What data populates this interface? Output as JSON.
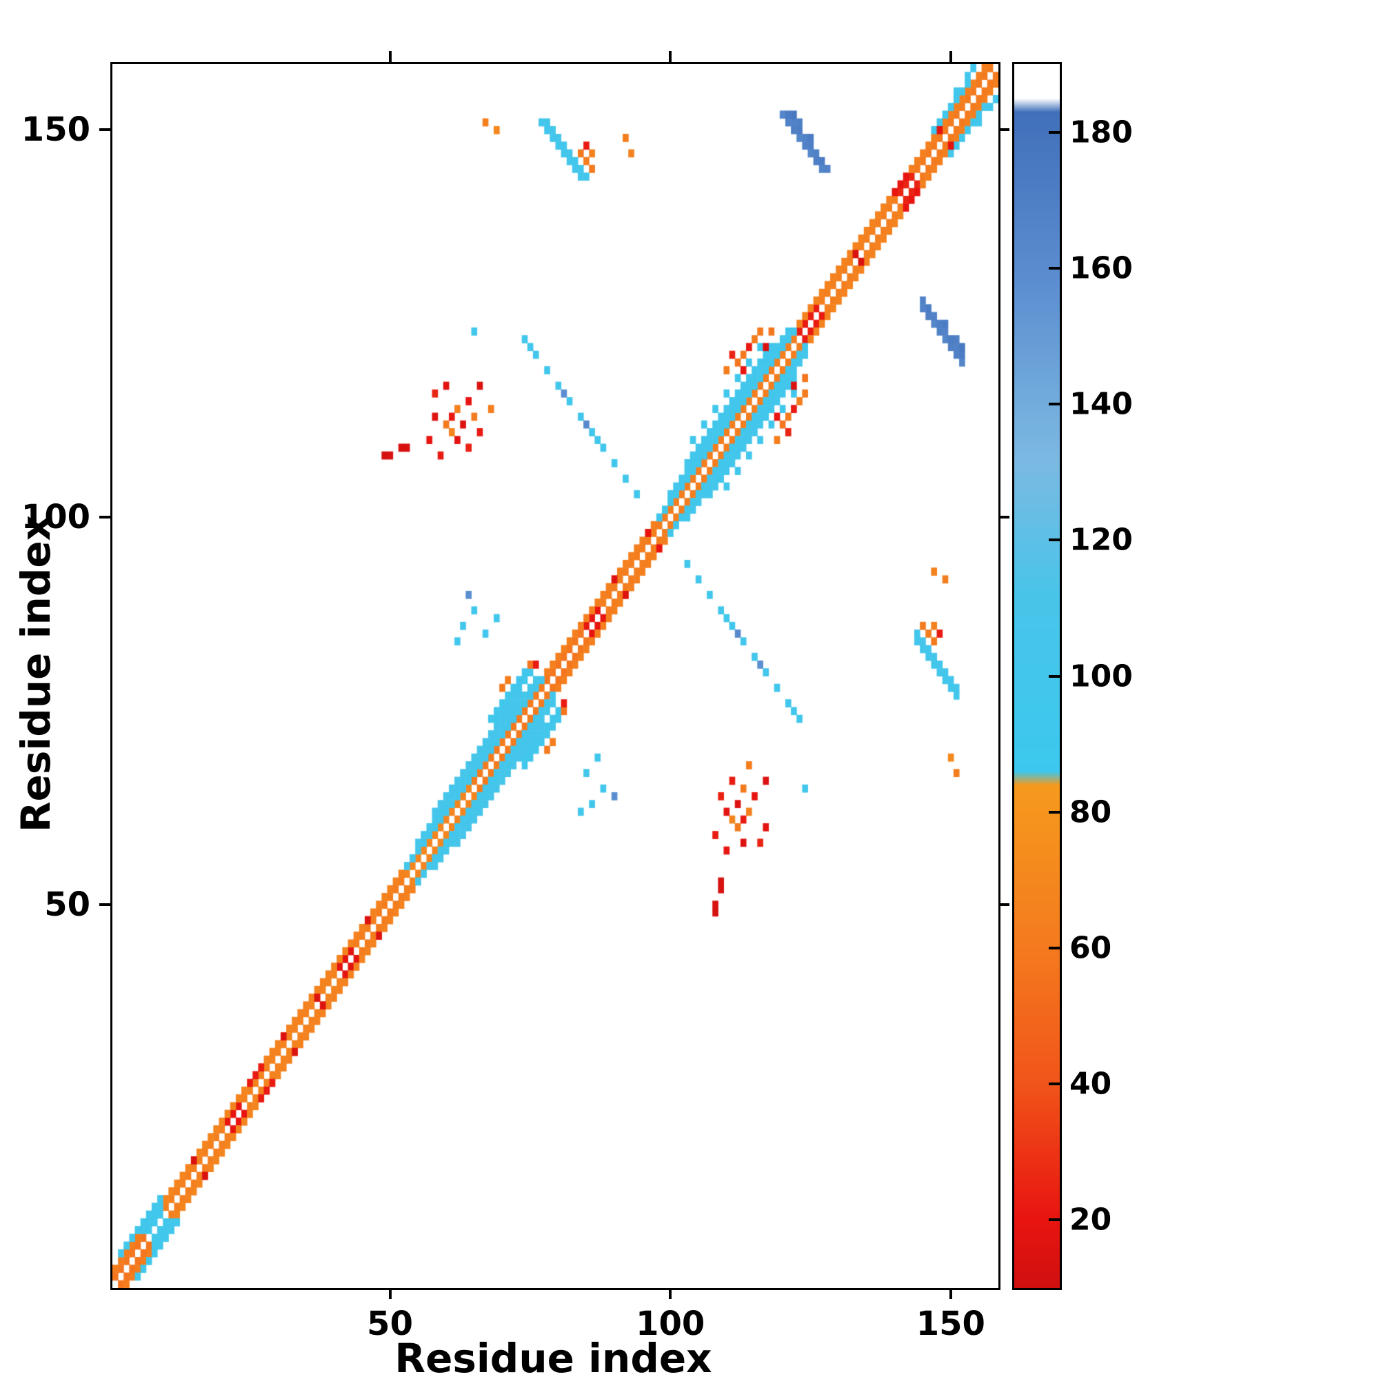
{
  "chart_data": {
    "type": "heatmap",
    "title": "",
    "xlabel": "Residue index",
    "ylabel": "Residue index",
    "x_range": [
      1,
      158
    ],
    "y_range": [
      1,
      158
    ],
    "x_ticks": [
      50,
      100,
      150
    ],
    "y_ticks": [
      50,
      100,
      150
    ],
    "grid": false,
    "background": "#ffffff",
    "frame_color": "#000000",
    "symmetric": true,
    "colorbar": {
      "position": "right",
      "range": [
        10,
        190
      ],
      "ticks": [
        20,
        40,
        60,
        80,
        100,
        120,
        140,
        160,
        180
      ],
      "stops": [
        [
          10,
          "#cf1010"
        ],
        [
          20,
          "#e81410"
        ],
        [
          40,
          "#f1541a"
        ],
        [
          60,
          "#f47a1e"
        ],
        [
          84,
          "#f59a1d"
        ],
        [
          86,
          "#3cc8ee"
        ],
        [
          112,
          "#49c4e9"
        ],
        [
          132,
          "#7cb9e2"
        ],
        [
          158,
          "#5b8ed0"
        ],
        [
          183,
          "#4170ba"
        ],
        [
          185,
          "#ffffff"
        ],
        [
          190,
          "#ffffff"
        ]
      ]
    },
    "band_segments": [
      [
        1,
        6,
        1,
        58
      ],
      [
        7,
        9,
        1,
        95
      ],
      [
        10,
        20,
        1,
        64
      ],
      [
        21,
        23,
        1,
        20
      ],
      [
        24,
        40,
        1,
        66
      ],
      [
        41,
        43,
        1,
        18
      ],
      [
        44,
        52,
        1,
        62
      ],
      [
        53,
        64,
        1,
        68
      ],
      [
        65,
        77,
        1,
        60
      ],
      [
        78,
        84,
        1,
        58
      ],
      [
        85,
        87,
        1,
        20
      ],
      [
        88,
        99,
        1,
        62
      ],
      [
        100,
        122,
        1,
        62
      ],
      [
        123,
        126,
        1,
        22
      ],
      [
        127,
        140,
        1,
        64
      ],
      [
        141,
        143,
        1,
        25
      ],
      [
        144,
        157,
        1,
        60
      ],
      [
        1,
        5,
        2,
        62
      ],
      [
        6,
        9,
        2,
        96
      ],
      [
        10,
        24,
        2,
        68
      ],
      [
        25,
        27,
        2,
        22
      ],
      [
        28,
        52,
        2,
        66
      ],
      [
        53,
        77,
        2,
        98
      ],
      [
        78,
        97,
        2,
        64
      ],
      [
        98,
        122,
        2,
        96
      ],
      [
        123,
        139,
        2,
        66
      ],
      [
        140,
        142,
        2,
        20
      ],
      [
        143,
        156,
        2,
        64
      ],
      [
        2,
        8,
        3,
        95
      ],
      [
        55,
        76,
        3,
        102
      ],
      [
        100,
        121,
        3,
        100
      ],
      [
        147,
        153,
        3,
        96
      ],
      [
        58,
        73,
        4,
        105
      ],
      [
        103,
        118,
        4,
        98
      ],
      [
        104,
        117,
        6,
        95,
        2
      ]
    ],
    "points": [
      [
        77,
        151,
        100
      ],
      [
        78,
        150,
        98
      ],
      [
        79,
        149,
        100
      ],
      [
        80,
        148,
        97
      ],
      [
        81,
        147,
        100
      ],
      [
        82,
        146,
        98
      ],
      [
        83,
        145,
        100
      ],
      [
        84,
        144,
        98
      ],
      [
        78,
        151,
        102
      ],
      [
        79,
        150,
        99
      ],
      [
        80,
        149,
        101
      ],
      [
        81,
        148,
        98
      ],
      [
        82,
        147,
        101
      ],
      [
        83,
        146,
        99
      ],
      [
        84,
        145,
        101
      ],
      [
        85,
        144,
        99
      ],
      [
        84,
        147,
        60
      ],
      [
        85,
        146,
        62
      ],
      [
        85,
        148,
        22
      ],
      [
        86,
        147,
        65
      ],
      [
        86,
        145,
        60
      ],
      [
        67,
        151,
        62
      ],
      [
        69,
        150,
        70
      ],
      [
        120,
        152,
        165
      ],
      [
        121,
        151,
        168
      ],
      [
        122,
        150,
        170
      ],
      [
        123,
        149,
        165
      ],
      [
        124,
        148,
        168
      ],
      [
        125,
        147,
        165
      ],
      [
        126,
        146,
        170
      ],
      [
        127,
        145,
        166
      ],
      [
        121,
        152,
        172
      ],
      [
        122,
        151,
        168
      ],
      [
        123,
        150,
        172
      ],
      [
        124,
        149,
        167
      ],
      [
        125,
        148,
        170
      ],
      [
        126,
        147,
        168
      ],
      [
        127,
        146,
        172
      ],
      [
        128,
        145,
        168
      ],
      [
        122,
        152,
        175
      ],
      [
        123,
        151,
        170
      ],
      [
        125,
        149,
        172
      ],
      [
        74,
        123,
        95
      ],
      [
        75,
        122,
        96
      ],
      [
        76,
        121,
        97
      ],
      [
        78,
        119,
        95
      ],
      [
        80,
        117,
        98
      ],
      [
        81,
        116,
        158
      ],
      [
        82,
        115,
        95
      ],
      [
        84,
        113,
        97
      ],
      [
        85,
        112,
        162
      ],
      [
        86,
        111,
        95
      ],
      [
        87,
        110,
        96
      ],
      [
        88,
        109,
        98
      ],
      [
        90,
        107,
        95
      ],
      [
        92,
        105,
        97
      ],
      [
        94,
        103,
        95
      ],
      [
        62,
        84,
        95
      ],
      [
        63,
        86,
        98
      ],
      [
        65,
        88,
        96
      ],
      [
        64,
        90,
        158
      ],
      [
        67,
        85,
        97
      ],
      [
        69,
        87,
        95
      ],
      [
        49,
        108,
        12
      ],
      [
        50,
        108,
        14
      ],
      [
        52,
        109,
        14
      ],
      [
        53,
        109,
        13
      ],
      [
        57,
        110,
        20
      ],
      [
        58,
        113,
        16
      ],
      [
        59,
        108,
        22
      ],
      [
        60,
        112,
        60
      ],
      [
        61,
        111,
        68
      ],
      [
        61,
        113,
        22
      ],
      [
        62,
        110,
        18
      ],
      [
        62,
        114,
        65
      ],
      [
        63,
        112,
        15
      ],
      [
        64,
        109,
        24
      ],
      [
        64,
        115,
        20
      ],
      [
        65,
        113,
        60
      ],
      [
        66,
        111,
        22
      ],
      [
        68,
        114,
        62
      ],
      [
        58,
        116,
        25
      ],
      [
        60,
        117,
        18
      ],
      [
        66,
        117,
        15
      ],
      [
        65,
        124,
        95
      ],
      [
        92,
        149,
        62
      ],
      [
        93,
        147,
        65
      ],
      [
        68,
        74,
        95
      ],
      [
        69,
        74,
        95
      ],
      [
        69,
        75,
        96
      ],
      [
        70,
        75,
        97
      ],
      [
        70,
        76,
        95
      ],
      [
        71,
        76,
        98
      ],
      [
        71,
        77,
        95
      ],
      [
        72,
        77,
        97
      ],
      [
        72,
        78,
        100
      ],
      [
        73,
        78,
        95
      ],
      [
        73,
        79,
        97
      ],
      [
        74,
        79,
        95
      ],
      [
        74,
        80,
        96
      ],
      [
        75,
        80,
        95
      ],
      [
        70,
        78,
        60
      ],
      [
        71,
        79,
        62
      ],
      [
        75,
        81,
        58
      ],
      [
        76,
        81,
        22
      ],
      [
        110,
        119,
        62
      ],
      [
        111,
        121,
        25
      ],
      [
        112,
        120,
        58
      ],
      [
        113,
        121,
        60
      ],
      [
        114,
        122,
        22
      ],
      [
        115,
        123,
        62
      ],
      [
        116,
        124,
        60
      ],
      [
        117,
        122,
        15
      ],
      [
        118,
        124,
        58
      ],
      [
        113,
        119,
        20
      ],
      [
        15,
        17,
        14
      ],
      [
        31,
        33,
        15
      ],
      [
        37,
        38,
        16
      ],
      [
        46,
        48,
        15
      ],
      [
        90,
        92,
        16
      ],
      [
        133,
        134,
        14
      ],
      [
        148,
        150,
        18
      ],
      [
        96,
        98,
        20
      ],
      [
        151,
        155,
        95
      ],
      [
        153,
        157,
        97
      ],
      [
        154,
        158,
        100
      ],
      [
        9,
        12,
        95
      ]
    ]
  }
}
